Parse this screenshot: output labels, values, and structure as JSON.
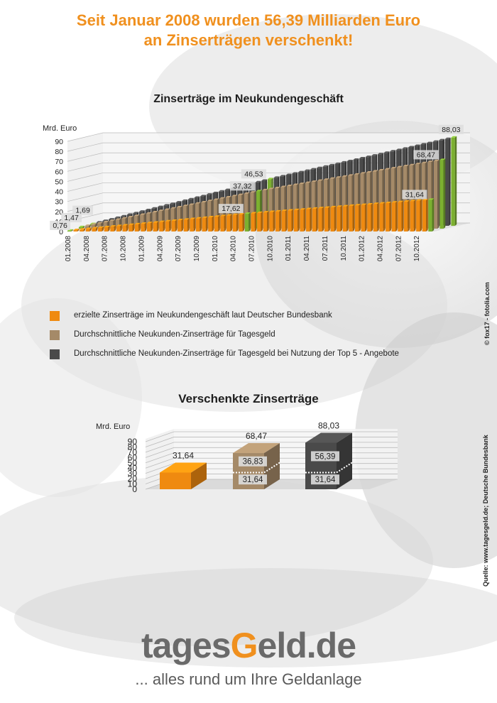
{
  "page": {
    "headline_line1": "Seit Januar 2008 wurden 56,39 Milliarden Euro",
    "headline_line2": "an Zinserträgen verschenkt!",
    "photo_credit": "© fox17 - fotolia.com",
    "source_credit": "Quelle: www.tagesgeld.de; Deutsche Bundesbank",
    "logo_part1": "tages",
    "logo_part2": "G",
    "logo_part3": "eld.de",
    "tagline": "... alles rund um Ihre Geldanlage"
  },
  "colors": {
    "orange": "#ef8a10",
    "brown": "#a58a68",
    "dark": "#4a4a4a",
    "green": "#7cb030"
  },
  "legend": [
    {
      "label": "erzielte Zinserträge im Neukundengeschäft laut Deutscher Bundesbank",
      "color": "#ef8a10"
    },
    {
      "label": "Durchschnittliche Neukunden-Zinserträge für Tagesgeld",
      "color": "#a58a68"
    },
    {
      "label": "Durchschnittliche Neukunden-Zinserträge für Tagesgeld bei Nutzung der Top 5 - Angebote",
      "color": "#4a4a4a"
    }
  ],
  "chart_data": [
    {
      "type": "bar",
      "title": "Zinserträge im Neukundengeschäft",
      "ylabel": "Mrd. Euro",
      "ylim": [
        0,
        90
      ],
      "yticks": [
        0,
        10,
        20,
        30,
        40,
        50,
        60,
        70,
        80,
        90
      ],
      "xtick_labels": [
        "01.2008",
        "04.2008",
        "07.2008",
        "10.2008",
        "01.2009",
        "04.2009",
        "07.2009",
        "10.2009",
        "01.2010",
        "04.2010",
        "07.2010",
        "10.2010",
        "01.2011",
        "04.2011",
        "07.2011",
        "10.2011",
        "01.2012",
        "04.2012",
        "07.2012",
        "10.2012"
      ],
      "months": 60,
      "series": [
        {
          "name": "erzielte Zinserträge im Neukundengeschäft laut Deutscher Bundesbank",
          "color": "#ef8a10"
        },
        {
          "name": "Durchschnittliche Neukunden-Zinserträge für Tagesgeld",
          "color": "#a58a68"
        },
        {
          "name": "Durchschnittliche Neukunden-Zinserträge für Tagesgeld bei Nutzung der Top 5 - Angebote",
          "color": "#4a4a4a"
        }
      ],
      "highlights": [
        {
          "month": 1,
          "values": [
            0.76,
            1.47,
            1.69
          ]
        },
        {
          "month": 30,
          "values": [
            17.62,
            37.32,
            46.53
          ]
        },
        {
          "month": 60,
          "values": [
            31.64,
            68.47,
            88.03
          ]
        }
      ],
      "highlight_labels": [
        {
          "text": "0,76"
        },
        {
          "text": "1,47"
        },
        {
          "text": "1,69"
        },
        {
          "text": "17,62"
        },
        {
          "text": "37,32"
        },
        {
          "text": "46,53"
        },
        {
          "text": "31,64"
        },
        {
          "text": "68,47"
        },
        {
          "text": "88,03"
        }
      ]
    },
    {
      "type": "bar",
      "title": "Verschenkte Zinserträge",
      "ylabel": "Mrd. Euro",
      "ylim": [
        0,
        90
      ],
      "yticks": [
        0,
        10,
        20,
        30,
        40,
        50,
        60,
        70,
        80,
        90
      ],
      "bars": [
        {
          "total": 31.64,
          "total_label": "31,64",
          "color": "#ef8a10",
          "base": 31.64,
          "base_label": "",
          "extra": 0,
          "extra_label": ""
        },
        {
          "total": 68.47,
          "total_label": "68,47",
          "color": "#a58a68",
          "base": 31.64,
          "base_label": "31,64",
          "extra": 36.83,
          "extra_label": "36,83"
        },
        {
          "total": 88.03,
          "total_label": "88,03",
          "color": "#4a4a4a",
          "base": 31.64,
          "base_label": "31,64",
          "extra": 56.39,
          "extra_label": "56,39"
        }
      ]
    }
  ]
}
